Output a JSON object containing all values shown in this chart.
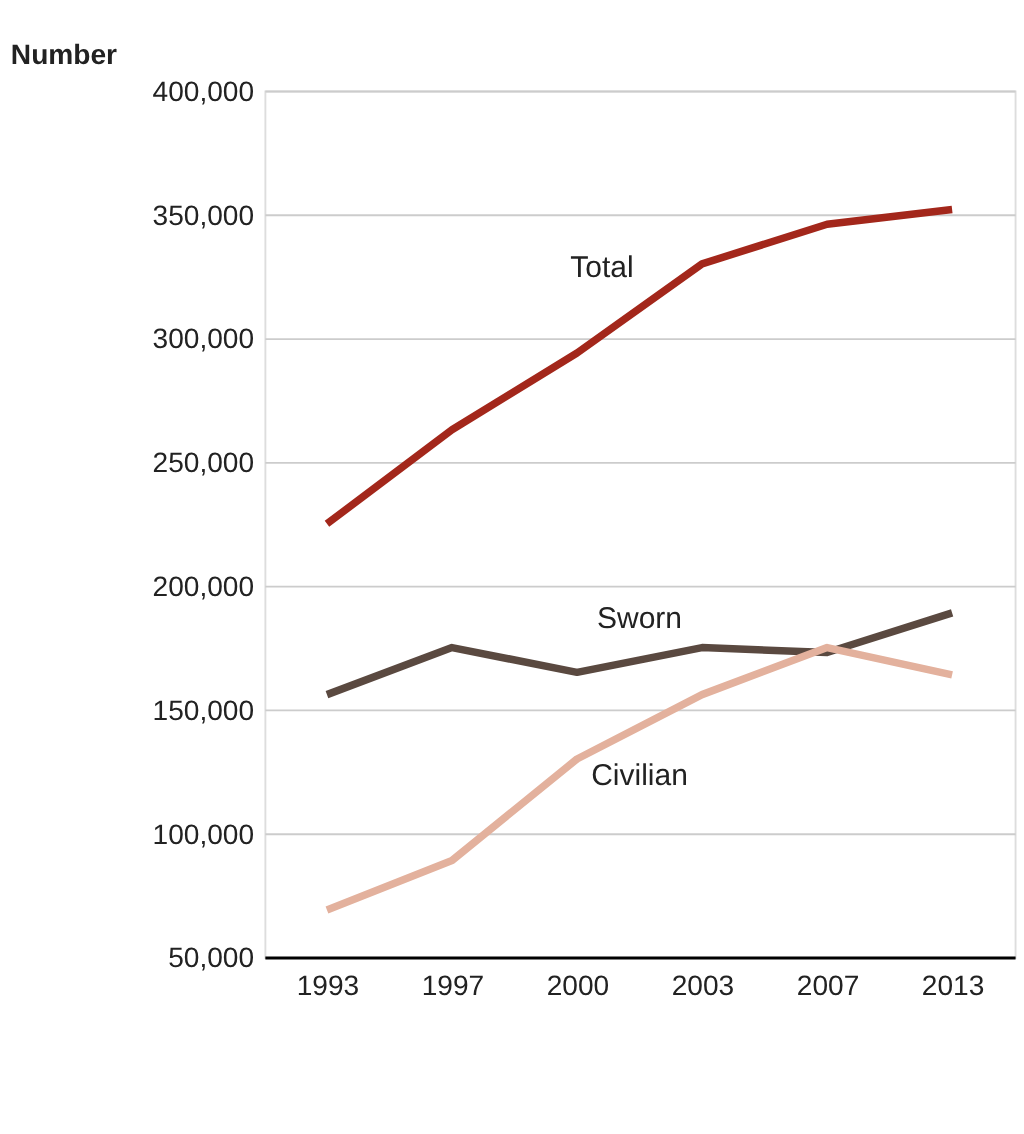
{
  "chart_data": {
    "type": "line",
    "ylabel": "Number",
    "categories": [
      "1993",
      "1997",
      "2000",
      "2003",
      "2007",
      "2013"
    ],
    "series": [
      {
        "name": "Total",
        "color": "#a3271b",
        "values": [
          225000,
          263000,
          294000,
          330000,
          346000,
          352000
        ]
      },
      {
        "name": "Sworn",
        "color": "#5a4940",
        "values": [
          156000,
          175000,
          165000,
          175000,
          173000,
          189000
        ]
      },
      {
        "name": "Civilian",
        "color": "#e3b19d",
        "values": [
          69000,
          89000,
          130000,
          156000,
          175000,
          164000
        ]
      }
    ],
    "ylim": [
      50000,
      400000
    ],
    "yticks": [
      {
        "value": 50000,
        "label": "50,000"
      },
      {
        "value": 100000,
        "label": "100,000"
      },
      {
        "value": 150000,
        "label": "150,000"
      },
      {
        "value": 200000,
        "label": "200,000"
      },
      {
        "value": 250000,
        "label": "250,000"
      },
      {
        "value": 300000,
        "label": "300,000"
      },
      {
        "value": 350000,
        "label": "350,000"
      },
      {
        "value": 400000,
        "label": "400,000"
      }
    ],
    "grid": "y",
    "legend": false,
    "marker": "none",
    "line_style": "solid"
  }
}
